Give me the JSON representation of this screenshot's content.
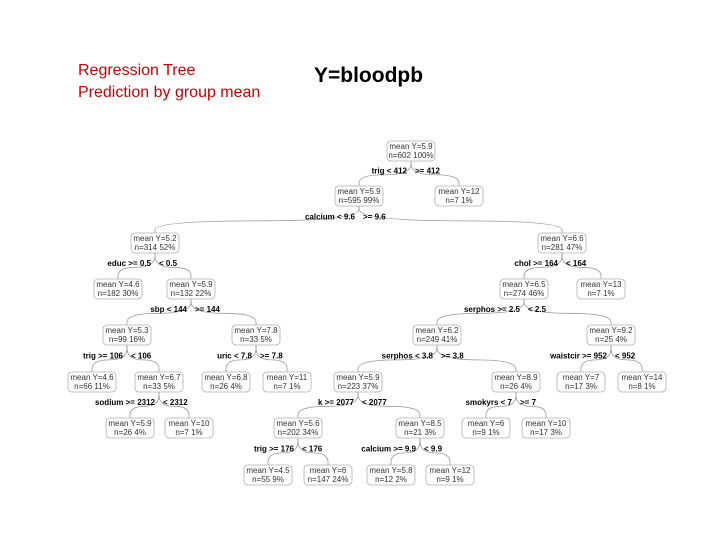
{
  "caption": {
    "line1": "Regression Tree",
    "line2": "Prediction by group mean"
  },
  "title": "Y=bloodpb",
  "nodes": [
    {
      "id": "n1",
      "mean": "mean Y=5.9",
      "count": "n=602  100%"
    },
    {
      "id": "n2",
      "mean": "mean Y=5.9",
      "count": "n=595  99%"
    },
    {
      "id": "n3",
      "mean": "mean Y=12",
      "count": "n=7  1%"
    },
    {
      "id": "n4",
      "mean": "mean Y=5.2",
      "count": "n=314  52%"
    },
    {
      "id": "n5",
      "mean": "mean Y=6.6",
      "count": "n=281  47%"
    },
    {
      "id": "n8",
      "mean": "mean Y=4.6",
      "count": "n=182  30%"
    },
    {
      "id": "n9",
      "mean": "mean Y=5.9",
      "count": "n=132  22%"
    },
    {
      "id": "n10",
      "mean": "mean Y=6.5",
      "count": "n=274  46%"
    },
    {
      "id": "n11",
      "mean": "mean Y=13",
      "count": "n=7  1%"
    },
    {
      "id": "n18",
      "mean": "mean Y=5.3",
      "count": "n=99  16%"
    },
    {
      "id": "n19",
      "mean": "mean Y=7.8",
      "count": "n=33  5%"
    },
    {
      "id": "n20",
      "mean": "mean Y=6.2",
      "count": "n=249  41%"
    },
    {
      "id": "n21",
      "mean": "mean Y=9.2",
      "count": "n=25  4%"
    },
    {
      "id": "n36",
      "mean": "mean Y=4.6",
      "count": "n=66  11%"
    },
    {
      "id": "n37",
      "mean": "mean Y=6.7",
      "count": "n=33  5%"
    },
    {
      "id": "n38",
      "mean": "mean Y=6.8",
      "count": "n=26  4%"
    },
    {
      "id": "n39",
      "mean": "mean Y=11",
      "count": "n=7  1%"
    },
    {
      "id": "n40",
      "mean": "mean Y=5.9",
      "count": "n=223  37%"
    },
    {
      "id": "n41",
      "mean": "mean Y=8.9",
      "count": "n=26  4%"
    },
    {
      "id": "n42",
      "mean": "mean Y=7",
      "count": "n=17  3%"
    },
    {
      "id": "n43",
      "mean": "mean Y=14",
      "count": "n=8  1%"
    },
    {
      "id": "n74",
      "mean": "mean Y=5.9",
      "count": "n=26  4%"
    },
    {
      "id": "n75",
      "mean": "mean Y=10",
      "count": "n=7  1%"
    },
    {
      "id": "n80",
      "mean": "mean Y=5.6",
      "count": "n=202  34%"
    },
    {
      "id": "n81",
      "mean": "mean Y=8.5",
      "count": "n=21  3%"
    },
    {
      "id": "n82",
      "mean": "mean Y=6",
      "count": "n=9  1%"
    },
    {
      "id": "n83",
      "mean": "mean Y=10",
      "count": "n=17  3%"
    },
    {
      "id": "n160",
      "mean": "mean Y=4.5",
      "count": "n=55  9%"
    },
    {
      "id": "n161",
      "mean": "mean Y=6",
      "count": "n=147  24%"
    },
    {
      "id": "n162",
      "mean": "mean Y=5.8",
      "count": "n=12  2%"
    },
    {
      "id": "n163",
      "mean": "mean Y=12",
      "count": "n=9  1%"
    }
  ],
  "splits": [
    {
      "id": "s1l",
      "text": "trig < 412"
    },
    {
      "id": "s1r",
      "text": ">= 412"
    },
    {
      "id": "s2l",
      "text": "calcium < 9.6"
    },
    {
      "id": "s2r",
      "text": ">= 9.6"
    },
    {
      "id": "s4l",
      "text": "educ >= 0.5"
    },
    {
      "id": "s4r",
      "text": "< 0.5"
    },
    {
      "id": "s5l",
      "text": "chol >= 164"
    },
    {
      "id": "s5r",
      "text": "< 164"
    },
    {
      "id": "s9l",
      "text": "sbp < 144"
    },
    {
      "id": "s9r",
      "text": ">= 144"
    },
    {
      "id": "s10l",
      "text": "serphos >= 2.5"
    },
    {
      "id": "s10r",
      "text": "< 2.5"
    },
    {
      "id": "s18l",
      "text": "trig >= 106"
    },
    {
      "id": "s18r",
      "text": "< 106"
    },
    {
      "id": "s19l",
      "text": "uric < 7.8"
    },
    {
      "id": "s19r",
      "text": ">= 7.8"
    },
    {
      "id": "s20l",
      "text": "serphos < 3.8"
    },
    {
      "id": "s20r",
      "text": ">= 3.8"
    },
    {
      "id": "s21l",
      "text": "waistcir >= 952"
    },
    {
      "id": "s21r",
      "text": "< 952"
    },
    {
      "id": "s37l",
      "text": "sodium >= 2312"
    },
    {
      "id": "s37r",
      "text": "< 2312"
    },
    {
      "id": "s40l",
      "text": "k >= 2077"
    },
    {
      "id": "s40r",
      "text": "< 2077"
    },
    {
      "id": "s41l",
      "text": "smokyrs < 7"
    },
    {
      "id": "s41r",
      "text": ">= 7"
    },
    {
      "id": "s80l",
      "text": "trig >= 176"
    },
    {
      "id": "s80r",
      "text": "< 176"
    },
    {
      "id": "s81l",
      "text": "calcium >= 9.9"
    },
    {
      "id": "s81r",
      "text": "< 9.9"
    }
  ]
}
